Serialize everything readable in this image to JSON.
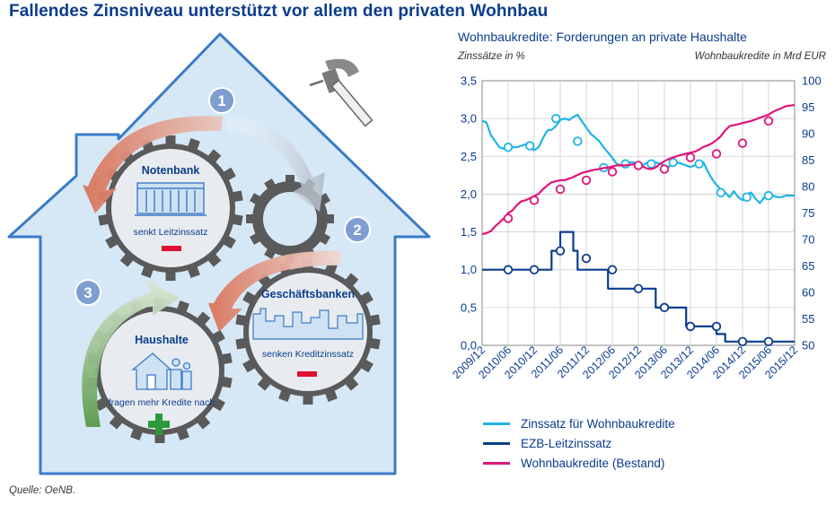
{
  "title": "Fallendes Zinsniveau unterstützt vor allem den privaten Wohnbau",
  "source": "Quelle: OeNB.",
  "infographic": {
    "steps": [
      {
        "number": "1",
        "label": "Notenbank",
        "text": "senkt Leitzinssatz",
        "sign": "minus"
      },
      {
        "number": "2",
        "label": "Geschäftsbanken",
        "text": "senken Kreditzinssatz",
        "sign": "minus"
      },
      {
        "number": "3",
        "label": "Haushalte",
        "text": "fragen mehr Kredite nach",
        "sign": "plus"
      }
    ],
    "icons": [
      "hammer-icon",
      "bank-building-icon",
      "skyline-icon",
      "family-house-icon"
    ],
    "colors": {
      "house_fill": "#d6e8f6",
      "house_stroke": "#3a7bc8",
      "gear": "#5a5a5a",
      "arrow_red": "#d8735a",
      "arrow_green": "#5a9a4a",
      "number_badge": "#7f9ed0",
      "minus": "#e0102f",
      "plus": "#2a9a3a"
    }
  },
  "chart_data": {
    "type": "line",
    "title": "Wohnbaukredite: Forderungen an private Haushalte",
    "ylabel_left": "Zinssätze in %",
    "ylabel_right": "Wohnbaukredite in Mrd EUR",
    "ylim_left": [
      0,
      3.5
    ],
    "ylim_right": [
      50,
      100
    ],
    "yticks_left": [
      "0,0",
      "0,5",
      "1,0",
      "1,5",
      "2,0",
      "2,5",
      "3,0",
      "3,5"
    ],
    "yticks_right": [
      "50",
      "55",
      "60",
      "65",
      "70",
      "75",
      "80",
      "85",
      "90",
      "95",
      "100"
    ],
    "xticks": [
      "2009/12",
      "2010/06",
      "2010/12",
      "2011/06",
      "2011/12",
      "2012/06",
      "2012/12",
      "2013/06",
      "2013/12",
      "2014/06",
      "2014/12",
      "2015/06",
      "2015/12"
    ],
    "grid": true,
    "legend_position": "bottom",
    "series": [
      {
        "name": "Zinssatz für Wohnbaukredite",
        "axis": "left",
        "color": "#1fb4e4",
        "values": [
          2.97,
          2.95,
          2.78,
          2.7,
          2.62,
          2.6,
          2.64,
          2.62,
          2.62,
          2.64,
          2.66,
          2.62,
          2.58,
          2.62,
          2.74,
          2.84,
          2.85,
          2.9,
          2.98,
          3.0,
          2.98,
          3.02,
          3.05,
          2.96,
          2.88,
          2.8,
          2.75,
          2.7,
          2.62,
          2.55,
          2.48,
          2.4,
          2.38,
          2.4,
          2.42,
          2.42,
          2.4,
          2.38,
          2.42,
          2.44,
          2.42,
          2.4,
          2.38,
          2.36,
          2.4,
          2.42,
          2.4,
          2.38,
          2.36,
          2.38,
          2.44,
          2.42,
          2.3,
          2.2,
          2.12,
          2.06,
          2.02,
          1.96,
          2.04,
          1.96,
          1.92,
          2.0,
          2.02,
          1.94,
          1.88,
          1.96,
          2.02,
          1.98,
          1.96,
          1.96,
          1.98,
          1.98,
          1.98
        ],
        "markers": [
          2.62,
          2.64,
          3.0,
          2.7,
          2.35,
          2.4,
          2.4,
          2.42,
          2.4,
          2.02,
          1.96,
          1.98
        ]
      },
      {
        "name": "EZB-Leitzinssatz",
        "axis": "left",
        "color": "#0a3c8c",
        "values": [
          1.0,
          1.0,
          1.0,
          1.0,
          1.0,
          1.0,
          1.0,
          1.0,
          1.0,
          1.0,
          1.0,
          1.0,
          1.0,
          1.0,
          1.0,
          1.0,
          1.25,
          1.25,
          1.5,
          1.5,
          1.5,
          1.25,
          1.0,
          1.0,
          1.0,
          1.0,
          1.0,
          1.0,
          1.0,
          0.75,
          0.75,
          0.75,
          0.75,
          0.75,
          0.75,
          0.75,
          0.75,
          0.75,
          0.75,
          0.75,
          0.5,
          0.5,
          0.5,
          0.5,
          0.5,
          0.5,
          0.5,
          0.25,
          0.25,
          0.25,
          0.25,
          0.25,
          0.25,
          0.25,
          0.15,
          0.15,
          0.05,
          0.05,
          0.05,
          0.05,
          0.05,
          0.05,
          0.05,
          0.05,
          0.05,
          0.05,
          0.05,
          0.05,
          0.05,
          0.05,
          0.05,
          0.05,
          0.05
        ],
        "markers": [
          1.0,
          1.0,
          1.25,
          1.15,
          1.0,
          0.75,
          0.5,
          0.25,
          0.25,
          0.05,
          0.05
        ]
      },
      {
        "name": "Wohnbaukredite (Bestand)",
        "axis": "right",
        "color": "#e0147a",
        "values": [
          71.0,
          71.2,
          71.6,
          72.5,
          73.2,
          74.0,
          75.0,
          75.5,
          76.5,
          77.2,
          77.4,
          77.8,
          78.2,
          78.6,
          79.5,
          80.2,
          80.8,
          81.0,
          81.2,
          81.2,
          81.5,
          81.8,
          82.2,
          82.6,
          82.8,
          83.0,
          83.2,
          83.3,
          83.5,
          83.6,
          83.8,
          84.0,
          84.0,
          84.0,
          84.1,
          84.2,
          84.0,
          83.8,
          83.4,
          83.3,
          83.6,
          84.3,
          84.8,
          85.2,
          85.5,
          85.8,
          86.0,
          86.2,
          86.4,
          86.6,
          87.0,
          87.5,
          87.8,
          88.2,
          88.8,
          89.5,
          90.6,
          91.4,
          91.6,
          91.8,
          92.0,
          92.2,
          92.4,
          92.7,
          93.0,
          93.3,
          93.6,
          94.1,
          94.5,
          94.8,
          95.2,
          95.3,
          95.4
        ],
        "markers": [
          74.0,
          77.4,
          79.5,
          81.2,
          82.8,
          84.0,
          83.3,
          85.5,
          86.2,
          88.2,
          92.4
        ]
      }
    ]
  }
}
